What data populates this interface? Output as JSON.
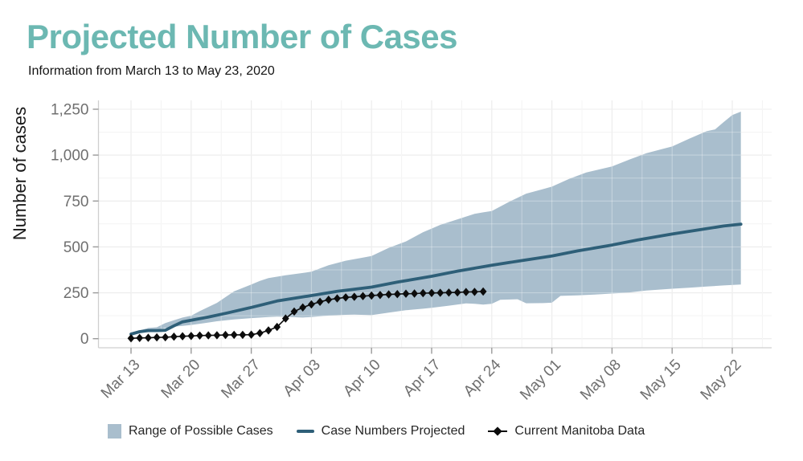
{
  "page": {
    "title": "Projected Number of Cases",
    "subtitle": "Information from March 13 to May 23, 2020"
  },
  "colors": {
    "title": "#6cb8b2",
    "subtitle": "#141414",
    "band": "#a9becd",
    "projected_line": "#2e5f78",
    "manitoba": "#0c0c0c",
    "grid_major": "#e3e3e3",
    "grid_minor": "#efefef",
    "grid_over_band": "rgba(255,255,255,0.32)",
    "axis_line": "#cfcfcf",
    "tick_mark": "#9a9a9a",
    "axis_text": "#6f6f6f",
    "axis_title": "#1a1a1a",
    "legend_text": "#262626"
  },
  "chart_data": {
    "type": "area+line+scatter",
    "title": "Projected Number of Cases",
    "subtitle": "Information from March 13 to May 23, 2020",
    "xlabel": "",
    "ylabel": "Number of cases",
    "ylim": [
      0,
      1250
    ],
    "grid": "on",
    "legend_position": "bottom",
    "x_unit": "days since Mar 13, 2020",
    "y_ticks": {
      "values": [
        0,
        250,
        500,
        750,
        1000,
        1250
      ],
      "labels": [
        "0",
        "250",
        "500",
        "750",
        "1,000",
        "1,250"
      ]
    },
    "x_ticks": {
      "labels": [
        "Mar 13",
        "Mar 20",
        "Mar 27",
        "Apr 03",
        "Apr 10",
        "Apr 17",
        "Apr 24",
        "May 01",
        "May 08",
        "May 15",
        "May 22"
      ],
      "day_offsets": [
        0,
        7,
        14,
        21,
        28,
        35,
        42,
        49,
        56,
        63,
        70
      ]
    },
    "series": [
      {
        "name": "Range of Possible Cases",
        "type": "band",
        "points_upper": [
          [
            0,
            25
          ],
          [
            1,
            45
          ],
          [
            2,
            58
          ],
          [
            3,
            62
          ],
          [
            4,
            85
          ],
          [
            5,
            100
          ],
          [
            6,
            115
          ],
          [
            7,
            125
          ],
          [
            8,
            150
          ],
          [
            10,
            195
          ],
          [
            12,
            258
          ],
          [
            14,
            295
          ],
          [
            15,
            315
          ],
          [
            16,
            330
          ],
          [
            18,
            345
          ],
          [
            20,
            358
          ],
          [
            21,
            365
          ],
          [
            23,
            400
          ],
          [
            25,
            425
          ],
          [
            27,
            442
          ],
          [
            28,
            450
          ],
          [
            30,
            495
          ],
          [
            32,
            530
          ],
          [
            34,
            580
          ],
          [
            35,
            600
          ],
          [
            36,
            620
          ],
          [
            38,
            650
          ],
          [
            40,
            680
          ],
          [
            41,
            688
          ],
          [
            42,
            695
          ],
          [
            44,
            745
          ],
          [
            46,
            790
          ],
          [
            48,
            815
          ],
          [
            49,
            828
          ],
          [
            51,
            870
          ],
          [
            53,
            905
          ],
          [
            55,
            927
          ],
          [
            56,
            938
          ],
          [
            58,
            975
          ],
          [
            60,
            1010
          ],
          [
            62,
            1035
          ],
          [
            63,
            1047
          ],
          [
            65,
            1090
          ],
          [
            67,
            1130
          ],
          [
            68,
            1140
          ],
          [
            69,
            1180
          ],
          [
            70,
            1218
          ],
          [
            71,
            1237
          ]
        ],
        "points_lower": [
          [
            0,
            25
          ],
          [
            1,
            35
          ],
          [
            2,
            45
          ],
          [
            3,
            50
          ],
          [
            4,
            58
          ],
          [
            5,
            65
          ],
          [
            6,
            70
          ],
          [
            7,
            75
          ],
          [
            9,
            88
          ],
          [
            10,
            95
          ],
          [
            12,
            105
          ],
          [
            14,
            112
          ],
          [
            16,
            118
          ],
          [
            17,
            120
          ],
          [
            18,
            119
          ],
          [
            20,
            115
          ],
          [
            21,
            118
          ],
          [
            23,
            126
          ],
          [
            25,
            130
          ],
          [
            26,
            131
          ],
          [
            28,
            128
          ],
          [
            30,
            142
          ],
          [
            32,
            155
          ],
          [
            34,
            163
          ],
          [
            35,
            168
          ],
          [
            37,
            180
          ],
          [
            39,
            192
          ],
          [
            40,
            190
          ],
          [
            41,
            186
          ],
          [
            42,
            190
          ],
          [
            43,
            212
          ],
          [
            45,
            215
          ],
          [
            46,
            193
          ],
          [
            48,
            194
          ],
          [
            49,
            196
          ],
          [
            50,
            233
          ],
          [
            52,
            236
          ],
          [
            54,
            240
          ],
          [
            56,
            246
          ],
          [
            58,
            252
          ],
          [
            60,
            262
          ],
          [
            63,
            272
          ],
          [
            65,
            278
          ],
          [
            67,
            284
          ],
          [
            69,
            290
          ],
          [
            71,
            295
          ]
        ]
      },
      {
        "name": "Case Numbers Projected",
        "type": "line",
        "points": [
          [
            0,
            25
          ],
          [
            1,
            38
          ],
          [
            2,
            44
          ],
          [
            3,
            44
          ],
          [
            4,
            46
          ],
          [
            5,
            70
          ],
          [
            6,
            92
          ],
          [
            7,
            100
          ],
          [
            9,
            118
          ],
          [
            11,
            138
          ],
          [
            14,
            170
          ],
          [
            17,
            205
          ],
          [
            21,
            235
          ],
          [
            24,
            258
          ],
          [
            28,
            281
          ],
          [
            31,
            308
          ],
          [
            35,
            340
          ],
          [
            38,
            368
          ],
          [
            42,
            400
          ],
          [
            45,
            422
          ],
          [
            49,
            450
          ],
          [
            52,
            478
          ],
          [
            56,
            510
          ],
          [
            59,
            538
          ],
          [
            63,
            570
          ],
          [
            66,
            592
          ],
          [
            69,
            614
          ],
          [
            71,
            624
          ]
        ]
      },
      {
        "name": "Current Manitoba Data",
        "type": "line+diamond",
        "start_day": 0,
        "daily_values": [
          2,
          4,
          5,
          7,
          8,
          11,
          13,
          15,
          17,
          18,
          19,
          20,
          21,
          21,
          22,
          30,
          45,
          64,
          110,
          148,
          170,
          187,
          201,
          212,
          219,
          225,
          228,
          232,
          235,
          238,
          241,
          243,
          245,
          246,
          248,
          249,
          250,
          251,
          252,
          254,
          255,
          257
        ]
      }
    ]
  }
}
